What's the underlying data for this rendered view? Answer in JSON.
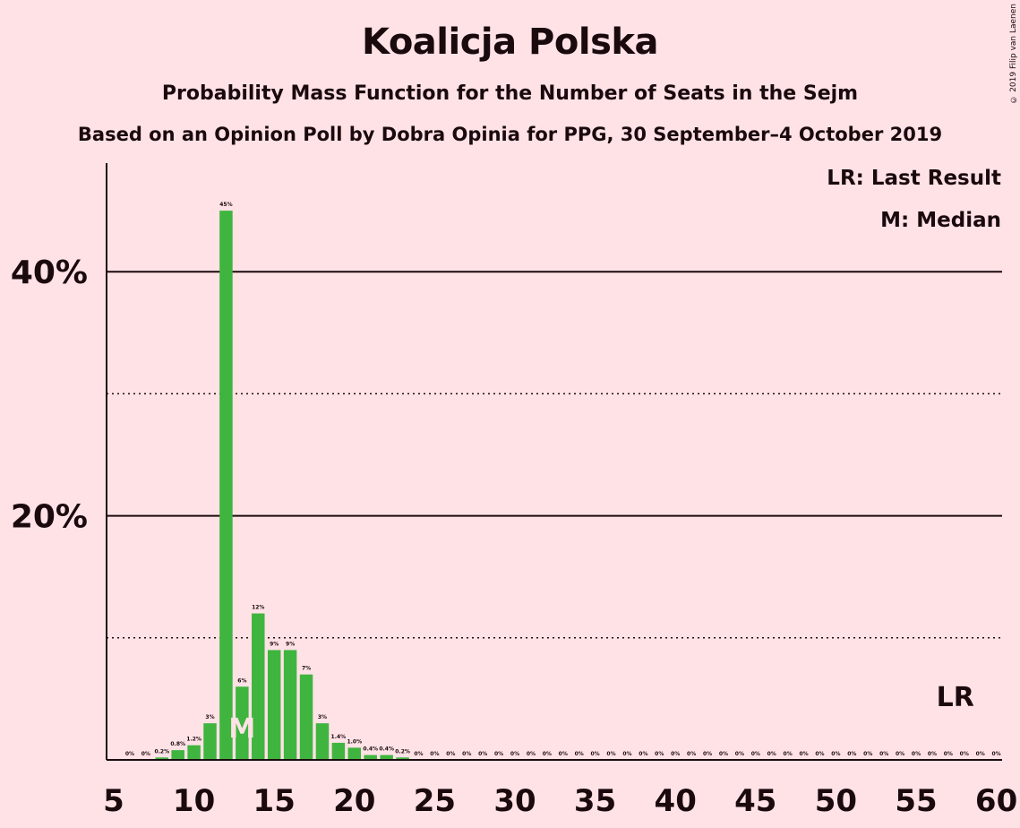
{
  "chart_data": {
    "type": "bar",
    "title": "Koalicja Polska",
    "subtitle": "Probability Mass Function for the Number of Seats in the Sejm",
    "subtitle2": "Based on an Opinion Poll by Dobra Opinia for PPG, 30 September–4 October 2019",
    "copyright": "© 2019 Filip van Laenen",
    "legend": [
      "LR: Last Result",
      "M: Median"
    ],
    "legend_placement": "top-right",
    "x": [
      6,
      7,
      8,
      9,
      10,
      11,
      12,
      13,
      14,
      15,
      16,
      17,
      18,
      19,
      20,
      21,
      22,
      23,
      24,
      25,
      26,
      27,
      28,
      29,
      30,
      31,
      32,
      33,
      34,
      35,
      36,
      37,
      38,
      39,
      40,
      41,
      42,
      43,
      44,
      45,
      46,
      47,
      48,
      49,
      50,
      51,
      52,
      53,
      54,
      55,
      56,
      57,
      58,
      59,
      60
    ],
    "values": [
      0,
      0,
      0.2,
      0.8,
      1.2,
      3,
      45,
      6,
      12,
      9,
      9,
      7,
      3,
      1.4,
      1.0,
      0.4,
      0.4,
      0.2,
      0,
      0,
      0,
      0,
      0,
      0,
      0,
      0,
      0,
      0,
      0,
      0,
      0,
      0,
      0,
      0,
      0,
      0,
      0,
      0,
      0,
      0,
      0,
      0,
      0,
      0,
      0,
      0,
      0,
      0,
      0,
      0,
      0,
      0,
      0,
      0,
      0
    ],
    "labels": [
      "0%",
      "0%",
      "0.2%",
      "0.8%",
      "1.2%",
      "3%",
      "45%",
      "6%",
      "12%",
      "9%",
      "9%",
      "7%",
      "3%",
      "1.4%",
      "1.0%",
      "0.4%",
      "0.4%",
      "0.2%",
      "0%",
      "0%",
      "0%",
      "0%",
      "0%",
      "0%",
      "0%",
      "0%",
      "0%",
      "0%",
      "0%",
      "0%",
      "0%",
      "0%",
      "0%",
      "0%",
      "0%",
      "0%",
      "0%",
      "0%",
      "0%",
      "0%",
      "0%",
      "0%",
      "0%",
      "0%",
      "0%",
      "0%",
      "0%",
      "0%",
      "0%",
      "0%",
      "0%",
      "0%",
      "0%",
      "0%",
      "0%"
    ],
    "x_ticks": [
      5,
      10,
      15,
      20,
      25,
      30,
      35,
      40,
      45,
      50,
      55,
      60
    ],
    "y_ticks": [
      "20%",
      "40%"
    ],
    "y_solid_gridlines": [
      20,
      40
    ],
    "y_dotted_gridlines": [
      10,
      30
    ],
    "xlim": [
      5,
      60
    ],
    "ylim": [
      0,
      49
    ],
    "median_seat": 13,
    "median_marker": "M",
    "last_result_seat": 58,
    "last_result_marker": "LR",
    "bar_color": "#3fb53f"
  }
}
